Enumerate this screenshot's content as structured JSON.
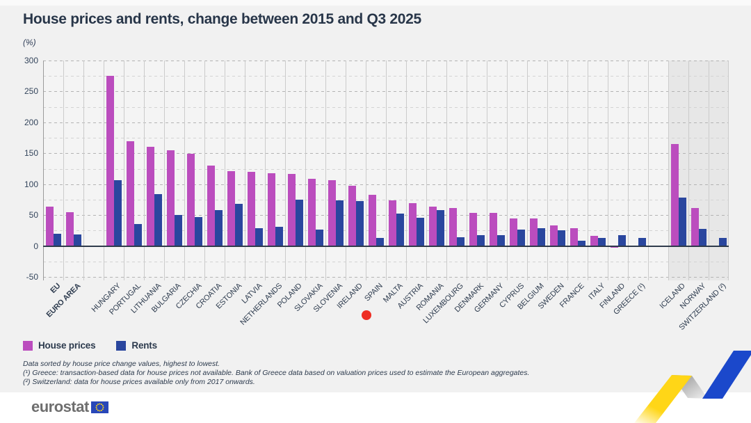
{
  "page": {
    "title": "House prices and rents, change between 2015 and Q3 2025"
  },
  "notes": {
    "lines": [
      "Data sorted by house price change values, highest to lowest.",
      "(¹) Greece: transaction-based data for house prices not available. Bank of Greece data based on valuation prices used to estimate the European aggregates.",
      "(²) Switzerland: data for house prices available only from 2017 onwards."
    ]
  },
  "footer": {
    "brand": "eurostat"
  },
  "colors": {
    "house_prices": "#bb4dbe",
    "rents": "#2a469e",
    "efta_shading": "#e7e7e7",
    "click_marker": "#ee2d22",
    "ribbon_yellow": "#ffd617",
    "ribbon_blue": "#1b48cb",
    "eu_flag_blue": "#2847b8",
    "eu_flag_stars": "#ffd617"
  },
  "chart_data": {
    "type": "bar",
    "title": "House prices and rents, change between 2015 and Q3 2025",
    "ylabel": "(%)",
    "xlabel": "",
    "ylim": [
      -50,
      300
    ],
    "yticks": [
      300,
      250,
      200,
      150,
      100,
      50,
      0,
      -50
    ],
    "minor_grid_step": 25,
    "grid": true,
    "legend_position": "bottom-left",
    "series": [
      {
        "name": "House prices",
        "color": "#bb4dbe"
      },
      {
        "name": "Rents",
        "color": "#2a469e"
      }
    ],
    "groups": [
      {
        "label": "EU",
        "house_prices": 64,
        "rents": 20,
        "bold": true
      },
      {
        "label": "EURO AREA",
        "house_prices": 55,
        "rents": 19,
        "bold": true
      },
      {
        "gap": true
      },
      {
        "label": "HUNGARY",
        "house_prices": 275,
        "rents": 107
      },
      {
        "label": "PORTUGAL",
        "house_prices": 169,
        "rents": 36
      },
      {
        "label": "LITHUANIA",
        "house_prices": 161,
        "rents": 84
      },
      {
        "label": "BULGARIA",
        "house_prices": 155,
        "rents": 50
      },
      {
        "label": "CZECHIA",
        "house_prices": 149,
        "rents": 47
      },
      {
        "label": "CROATIA",
        "house_prices": 130,
        "rents": 58
      },
      {
        "label": "ESTONIA",
        "house_prices": 121,
        "rents": 68
      },
      {
        "label": "LATVIA",
        "house_prices": 120,
        "rents": 29
      },
      {
        "label": "NETHERLANDS",
        "house_prices": 118,
        "rents": 31
      },
      {
        "label": "POLAND",
        "house_prices": 117,
        "rents": 75
      },
      {
        "label": "SLOVAKIA",
        "house_prices": 109,
        "rents": 27
      },
      {
        "label": "SLOVENIA",
        "house_prices": 106,
        "rents": 74
      },
      {
        "label": "IRELAND",
        "house_prices": 98,
        "rents": 73
      },
      {
        "label": "SPAIN",
        "house_prices": 83,
        "rents": 13
      },
      {
        "label": "MALTA",
        "house_prices": 74,
        "rents": 52
      },
      {
        "label": "AUSTRIA",
        "house_prices": 69,
        "rents": 46
      },
      {
        "label": "ROMANIA",
        "house_prices": 64,
        "rents": 58
      },
      {
        "label": "LUXEMBOURG",
        "house_prices": 62,
        "rents": 14
      },
      {
        "label": "DENMARK",
        "house_prices": 54,
        "rents": 17
      },
      {
        "label": "GERMANY",
        "house_prices": 53,
        "rents": 18
      },
      {
        "label": "CYPRUS",
        "house_prices": 45,
        "rents": 27
      },
      {
        "label": "BELGIUM",
        "house_prices": 44,
        "rents": 29
      },
      {
        "label": "SWEDEN",
        "house_prices": 33,
        "rents": 25
      },
      {
        "label": "FRANCE",
        "house_prices": 29,
        "rents": 9
      },
      {
        "label": "ITALY",
        "house_prices": 16,
        "rents": 13
      },
      {
        "label": "FINLAND",
        "house_prices": -3,
        "rents": 18
      },
      {
        "label": "GREECE (¹)",
        "house_prices": null,
        "rents": 13
      },
      {
        "gap": true
      },
      {
        "label": "ICELAND",
        "house_prices": 165,
        "rents": 78,
        "shaded": true
      },
      {
        "label": "NORWAY",
        "house_prices": 61,
        "rents": 28,
        "shaded": true
      },
      {
        "label": "SWITZERLAND (²)",
        "house_prices": null,
        "rents": 13,
        "shaded": true
      }
    ]
  }
}
